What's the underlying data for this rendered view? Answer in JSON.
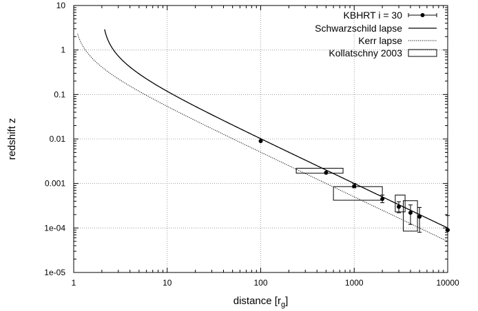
{
  "chart_data": {
    "type": "scatter",
    "title": "",
    "xlabel": "distance [r",
    "xlabel_sub": "g",
    "xlabel_close": "]",
    "ylabel": "redshift z",
    "xscale": "log",
    "yscale": "log",
    "xlim": [
      1,
      10000
    ],
    "ylim": [
      1e-05,
      10
    ],
    "grid": true,
    "legend_position": "top-right",
    "x_ticks": [
      "1",
      "10",
      "100",
      "1000",
      "10000"
    ],
    "y_ticks": [
      "1e-05",
      "1e-04",
      "0.001",
      "0.01",
      "0.1",
      "1",
      "10"
    ],
    "legend": [
      "KBHRT i = 30",
      "Schwarzschild lapse",
      "Kerr lapse",
      "Kollatschny 2003"
    ],
    "series": [
      {
        "name": "KBHRT i = 30",
        "kind": "points-with-errorbars",
        "points": [
          {
            "x": 100,
            "y": 0.009,
            "ylo": 0.009,
            "yhi": 0.009
          },
          {
            "x": 500,
            "y": 0.00175,
            "ylo": 0.00175,
            "yhi": 0.00175
          },
          {
            "x": 1000,
            "y": 0.00087,
            "ylo": 0.0008,
            "yhi": 0.001
          },
          {
            "x": 2000,
            "y": 0.00045,
            "ylo": 0.00037,
            "yhi": 0.00055
          },
          {
            "x": 3000,
            "y": 0.0003,
            "ylo": 0.00022,
            "yhi": 0.00039
          },
          {
            "x": 4000,
            "y": 0.00022,
            "ylo": 0.00012,
            "yhi": 0.00033
          },
          {
            "x": 5000,
            "y": 0.00018,
            "ylo": 8e-05,
            "yhi": 0.00029
          },
          {
            "x": 10000,
            "y": 9e-05,
            "ylo": 9e-05,
            "yhi": 0.00019
          }
        ]
      },
      {
        "name": "Schwarzschild lapse",
        "kind": "line",
        "style": "solid",
        "formula": "z = 1/sqrt(1 - 2/r) - 1",
        "x_range": [
          2.14,
          10000
        ]
      },
      {
        "name": "Kerr lapse",
        "kind": "line",
        "style": "dotted",
        "formula": "z = 1/sqrt(1 - 1/r) - 1",
        "x_range": [
          1.1,
          10000
        ]
      },
      {
        "name": "Kollatschny 2003",
        "kind": "boxes",
        "boxes": [
          {
            "x0": 240,
            "x1": 760,
            "y0": 0.0017,
            "y1": 0.0022
          },
          {
            "x0": 600,
            "x1": 2000,
            "y0": 0.00042,
            "y1": 0.00085
          },
          {
            "x0": 2750,
            "x1": 3500,
            "y0": 0.00023,
            "y1": 0.00055
          },
          {
            "x0": 3350,
            "x1": 4750,
            "y0": 8.5e-05,
            "y1": 0.00041
          }
        ]
      }
    ]
  }
}
